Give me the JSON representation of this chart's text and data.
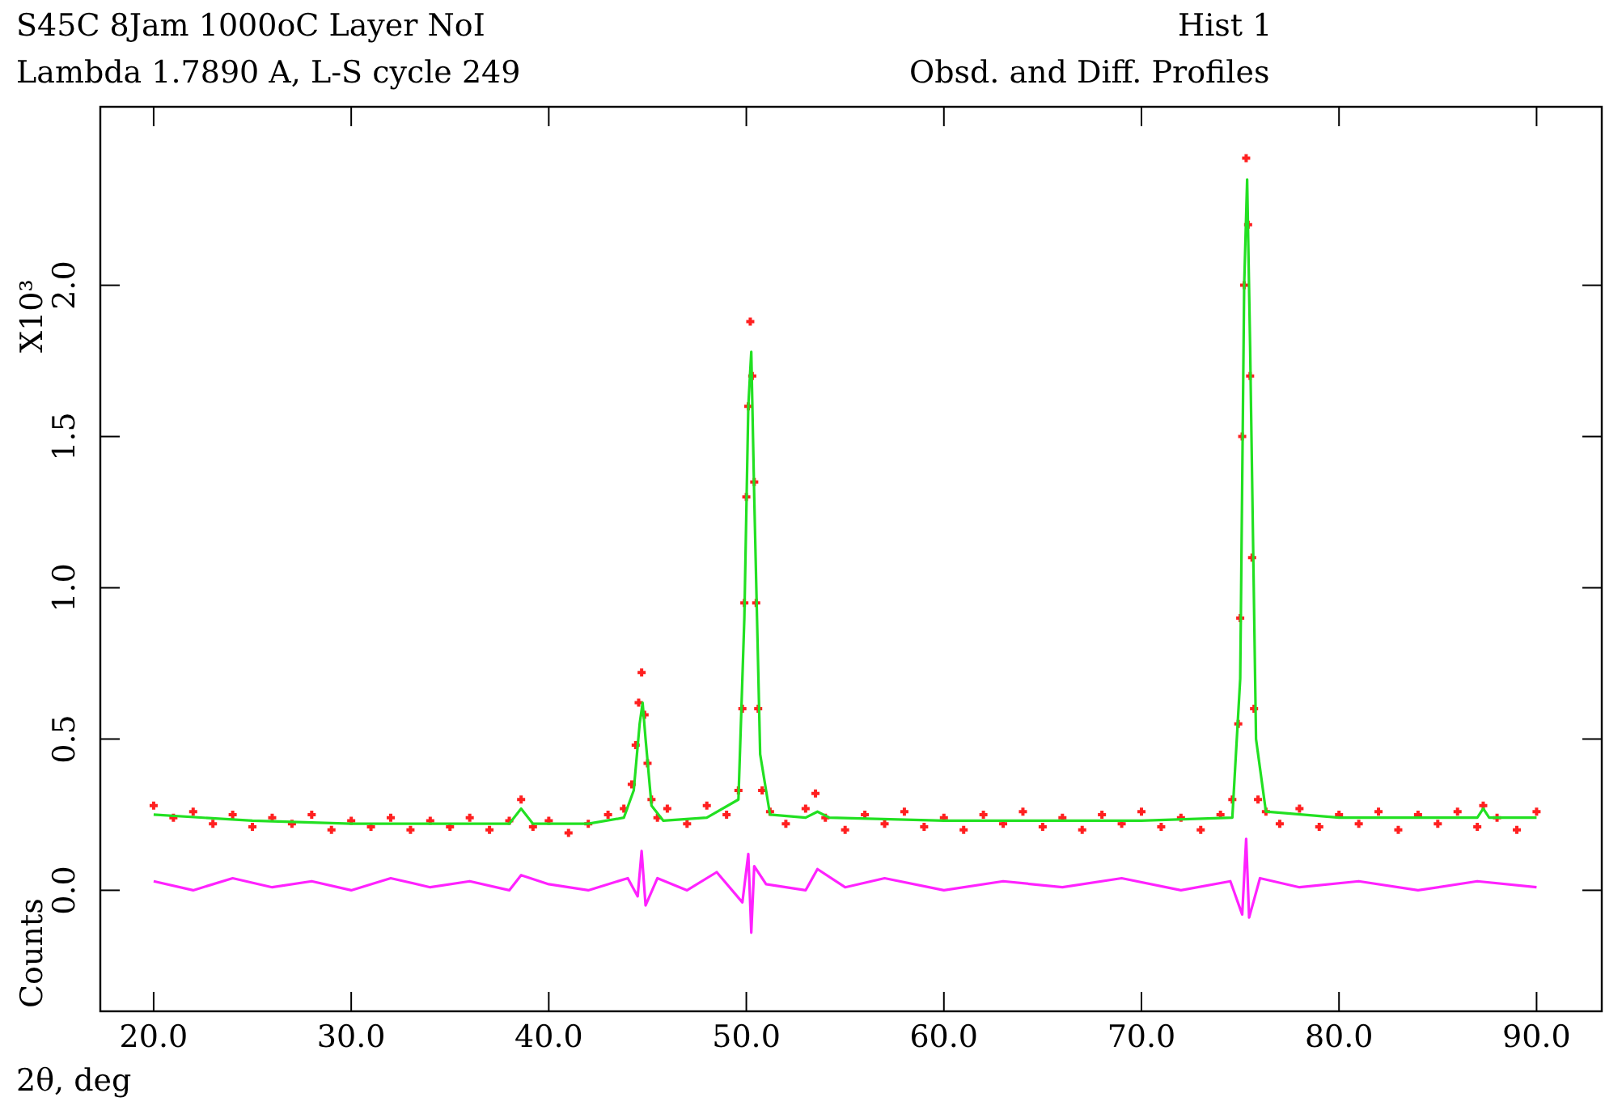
{
  "chart_data": {
    "type": "scatter",
    "title": "S45C 8Jam 1000oC Layer NoI",
    "subtitle": "Lambda 1.7890 A, L-S cycle  249",
    "xlabel": "2θ, deg",
    "ylabel": "Counts",
    "annotations": [
      "X10³",
      "Hist  1",
      "Obsd. and Diff. Profiles"
    ],
    "xlim": [
      17.3,
      93.3
    ],
    "ylim": [
      -0.4,
      2.59
    ],
    "xticks": [
      {
        "value": 20,
        "label": "20.0"
      },
      {
        "value": 30,
        "label": "30.0"
      },
      {
        "value": 40,
        "label": "40.0"
      },
      {
        "value": 50,
        "label": "50.0"
      },
      {
        "value": 60,
        "label": "60.0"
      },
      {
        "value": 70,
        "label": "70.0"
      },
      {
        "value": 80,
        "label": "80.0"
      },
      {
        "value": 90,
        "label": "90.0"
      }
    ],
    "yticks": [
      {
        "value": 0,
        "label": "0.0"
      },
      {
        "value": 0.5,
        "label": "0.5"
      },
      {
        "value": 1,
        "label": "1.0"
      },
      {
        "value": 1.5,
        "label": "1.5"
      },
      {
        "value": 2,
        "label": "2.0"
      }
    ],
    "grid": false,
    "series": [
      {
        "marker": "cross",
        "color": "#ff2020",
        "x": [
          20,
          21,
          22,
          23,
          24,
          25,
          26,
          27,
          28,
          29,
          30,
          31,
          32,
          33,
          34,
          35,
          36,
          37,
          38,
          38.6,
          39.2,
          40,
          41,
          42,
          43,
          43.8,
          44.2,
          44.4,
          44.55,
          44.7,
          44.85,
          45,
          45.2,
          45.5,
          46,
          47,
          48,
          49,
          49.6,
          49.8,
          49.9,
          50.0,
          50.1,
          50.2,
          50.3,
          50.4,
          50.5,
          50.6,
          50.8,
          51.2,
          52,
          53,
          53.5,
          54,
          55,
          56,
          57,
          58,
          59,
          60,
          61,
          62,
          63,
          64,
          65,
          66,
          67,
          68,
          69,
          70,
          71,
          72,
          73,
          74,
          74.6,
          74.9,
          75.0,
          75.1,
          75.2,
          75.3,
          75.4,
          75.5,
          75.6,
          75.7,
          75.9,
          76.3,
          77,
          78,
          79,
          80,
          81,
          82,
          83,
          84,
          85,
          86,
          87,
          87.3,
          88,
          89,
          90
        ],
        "values": [
          0.28,
          0.24,
          0.26,
          0.22,
          0.25,
          0.21,
          0.24,
          0.22,
          0.25,
          0.2,
          0.23,
          0.21,
          0.24,
          0.2,
          0.23,
          0.21,
          0.24,
          0.2,
          0.23,
          0.3,
          0.21,
          0.23,
          0.19,
          0.22,
          0.25,
          0.27,
          0.35,
          0.48,
          0.62,
          0.72,
          0.58,
          0.42,
          0.3,
          0.24,
          0.27,
          0.22,
          0.28,
          0.25,
          0.33,
          0.6,
          0.95,
          1.3,
          1.6,
          1.88,
          1.7,
          1.35,
          0.95,
          0.6,
          0.33,
          0.26,
          0.22,
          0.27,
          0.32,
          0.24,
          0.2,
          0.25,
          0.22,
          0.26,
          0.21,
          0.24,
          0.2,
          0.25,
          0.22,
          0.26,
          0.21,
          0.24,
          0.2,
          0.25,
          0.22,
          0.26,
          0.21,
          0.24,
          0.2,
          0.25,
          0.3,
          0.55,
          0.9,
          1.5,
          2.0,
          2.42,
          2.2,
          1.7,
          1.1,
          0.6,
          0.3,
          0.26,
          0.22,
          0.27,
          0.21,
          0.25,
          0.22,
          0.26,
          0.2,
          0.25,
          0.22,
          0.26,
          0.21,
          0.28,
          0.24,
          0.2,
          0.26
        ]
      },
      {
        "type": "line",
        "marker": "none",
        "line_style": "solid",
        "color": "#22e022",
        "x": [
          20,
          25,
          30,
          35,
          38,
          38.6,
          39.2,
          42,
          43.8,
          44.3,
          44.6,
          44.75,
          44.9,
          45.2,
          45.8,
          48,
          49.6,
          49.9,
          50.1,
          50.25,
          50.4,
          50.7,
          51.2,
          53,
          53.6,
          54.2,
          60,
          70,
          74.6,
          75.0,
          75.2,
          75.35,
          75.5,
          75.8,
          76.3,
          80,
          87,
          87.3,
          87.6,
          90
        ],
        "values": [
          0.25,
          0.23,
          0.22,
          0.22,
          0.22,
          0.27,
          0.22,
          0.22,
          0.24,
          0.33,
          0.55,
          0.62,
          0.5,
          0.28,
          0.23,
          0.24,
          0.3,
          0.9,
          1.6,
          1.78,
          1.3,
          0.45,
          0.25,
          0.24,
          0.26,
          0.24,
          0.23,
          0.23,
          0.24,
          0.7,
          2.0,
          2.35,
          1.8,
          0.5,
          0.26,
          0.24,
          0.24,
          0.27,
          0.24,
          0.24
        ]
      },
      {
        "type": "line",
        "marker": "none",
        "line_style": "solid",
        "color": "#ff22ff",
        "x": [
          20,
          22,
          24,
          26,
          28,
          30,
          32,
          34,
          36,
          38,
          38.6,
          40,
          42,
          44,
          44.5,
          44.7,
          44.9,
          45.5,
          47,
          48.5,
          49.8,
          50.1,
          50.25,
          50.4,
          51,
          53,
          53.6,
          55,
          57,
          60,
          63,
          66,
          69,
          72,
          74.5,
          75.1,
          75.3,
          75.45,
          76,
          78,
          81,
          84,
          87,
          90
        ],
        "values": [
          0.03,
          0.0,
          0.04,
          0.01,
          0.03,
          0.0,
          0.04,
          0.01,
          0.03,
          0.0,
          0.05,
          0.02,
          0.0,
          0.04,
          -0.02,
          0.13,
          -0.05,
          0.04,
          0.0,
          0.06,
          -0.04,
          0.12,
          -0.14,
          0.08,
          0.02,
          0.0,
          0.07,
          0.01,
          0.04,
          0.0,
          0.03,
          0.01,
          0.04,
          0.0,
          0.03,
          -0.08,
          0.17,
          -0.09,
          0.04,
          0.01,
          0.03,
          0.0,
          0.03,
          0.01
        ]
      }
    ]
  }
}
